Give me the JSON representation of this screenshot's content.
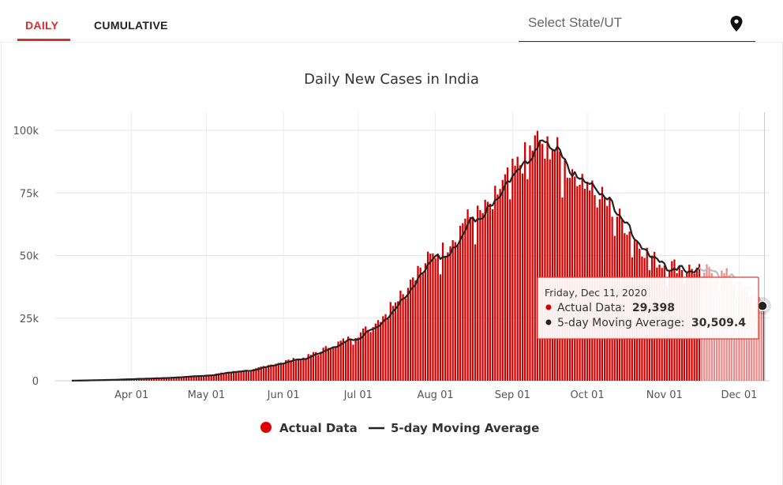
{
  "tabs": {
    "daily": "DAILY",
    "cumulative": "CUMULATIVE",
    "active": "daily"
  },
  "search": {
    "placeholder": "Select State/UT",
    "icon": "location-pin-icon"
  },
  "colors": {
    "accent": "#d32f2f",
    "bar": "#d10000",
    "line": "#222222",
    "grid": "#e6e6e6"
  },
  "chart_data": {
    "type": "bar",
    "title": "Daily New Cases in India",
    "xlabel": "",
    "ylabel": "",
    "ylim": [
      0,
      100000
    ],
    "yticks": [
      0,
      25000,
      50000,
      75000,
      100000
    ],
    "ytick_labels": [
      "0",
      "25k",
      "50k",
      "75k",
      "100k"
    ],
    "xticks": [
      "Apr 01",
      "May 01",
      "Jun 01",
      "Jul 01",
      "Aug 01",
      "Sep 01",
      "Oct 01",
      "Nov 01",
      "Dec 01"
    ],
    "start_date": "2020-03-08",
    "end_date": "2020-12-11",
    "anchors": [
      [
        "2020-03-08",
        50
      ],
      [
        "2020-03-20",
        300
      ],
      [
        "2020-04-01",
        700
      ],
      [
        "2020-04-15",
        1200
      ],
      [
        "2020-05-01",
        2200
      ],
      [
        "2020-05-10",
        3500
      ],
      [
        "2020-05-20",
        4500
      ],
      [
        "2020-06-01",
        7800
      ],
      [
        "2020-06-10",
        9500
      ],
      [
        "2020-06-20",
        14000
      ],
      [
        "2020-07-01",
        18500
      ],
      [
        "2020-07-10",
        25000
      ],
      [
        "2020-07-20",
        38000
      ],
      [
        "2020-07-28",
        48000
      ],
      [
        "2020-08-05",
        53000
      ],
      [
        "2020-08-12",
        64000
      ],
      [
        "2020-08-20",
        67000
      ],
      [
        "2020-08-28",
        78000
      ],
      [
        "2020-09-05",
        88000
      ],
      [
        "2020-09-11",
        96000
      ],
      [
        "2020-09-17",
        94000
      ],
      [
        "2020-09-23",
        85000
      ],
      [
        "2020-09-30",
        82000
      ],
      [
        "2020-10-08",
        72000
      ],
      [
        "2020-10-15",
        64000
      ],
      [
        "2020-10-22",
        54000
      ],
      [
        "2020-10-30",
        47000
      ],
      [
        "2020-11-06",
        46000
      ],
      [
        "2020-11-13",
        44500
      ],
      [
        "2020-11-20",
        43500
      ],
      [
        "2020-11-27",
        42000
      ],
      [
        "2020-12-04",
        35000
      ],
      [
        "2020-12-11",
        30000
      ]
    ],
    "series": [
      {
        "name": "Actual Data",
        "type": "bar",
        "color": "#d10000"
      },
      {
        "name": "5-day Moving Average",
        "type": "line",
        "color": "#222222"
      }
    ],
    "legend": [
      "Actual Data",
      "5-day Moving Average"
    ],
    "legend_position": "bottom-center",
    "tooltip": {
      "date": "Friday, Dec 11, 2020",
      "actual_label": "Actual Data:",
      "actual_value": "29,398",
      "avg_label": "5-day Moving Average:",
      "avg_value": "30,509.4",
      "last_actual": 29398,
      "last_avg": 30509.4
    }
  }
}
